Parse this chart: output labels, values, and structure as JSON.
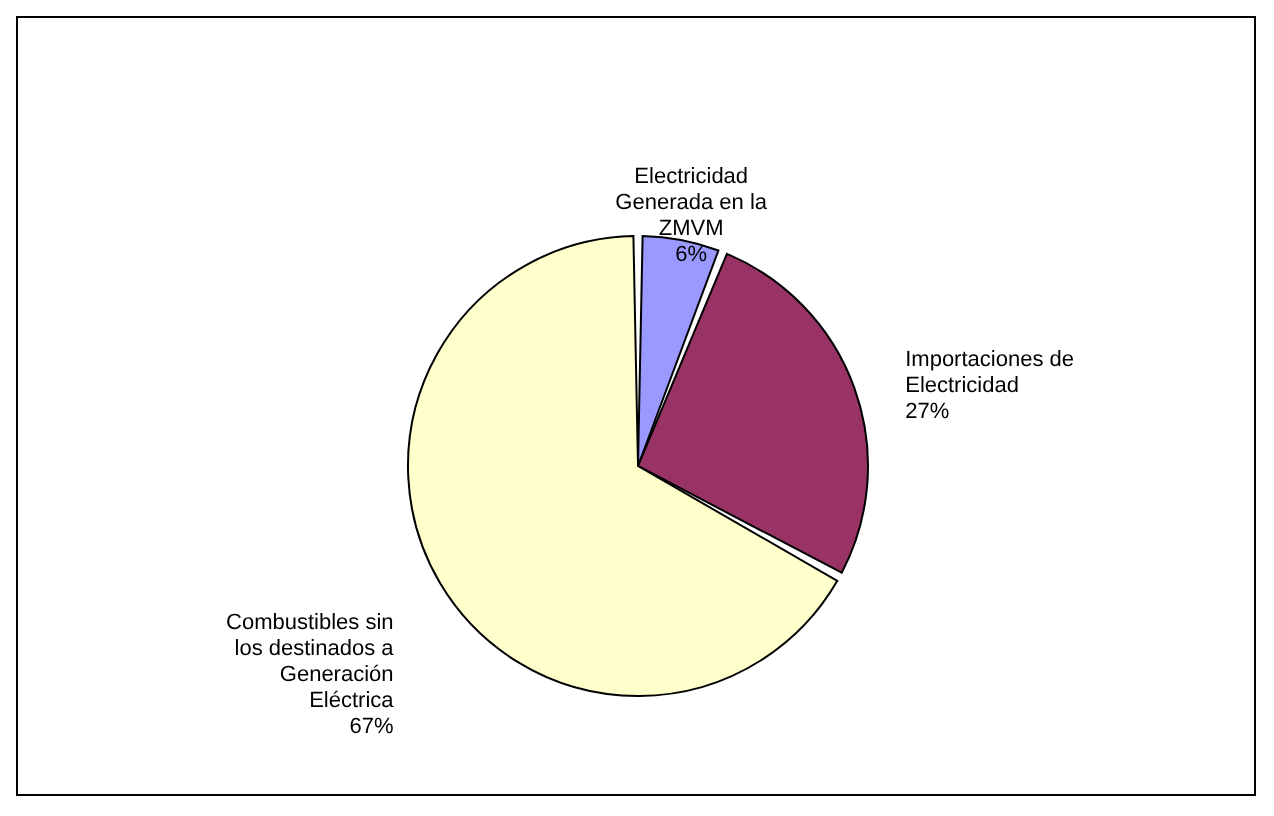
{
  "chart_data": {
    "type": "pie",
    "categories": [
      "Electricidad Generada en la ZMVM",
      "Importaciones de Electricidad",
      "Combustibles sin los destinados a Generación Eléctrica"
    ],
    "values": [
      6,
      27,
      67
    ],
    "colors": [
      "#9999ff",
      "#993366",
      "#ffffcc"
    ],
    "value_labels": [
      "6%",
      "27%",
      "67%"
    ]
  }
}
